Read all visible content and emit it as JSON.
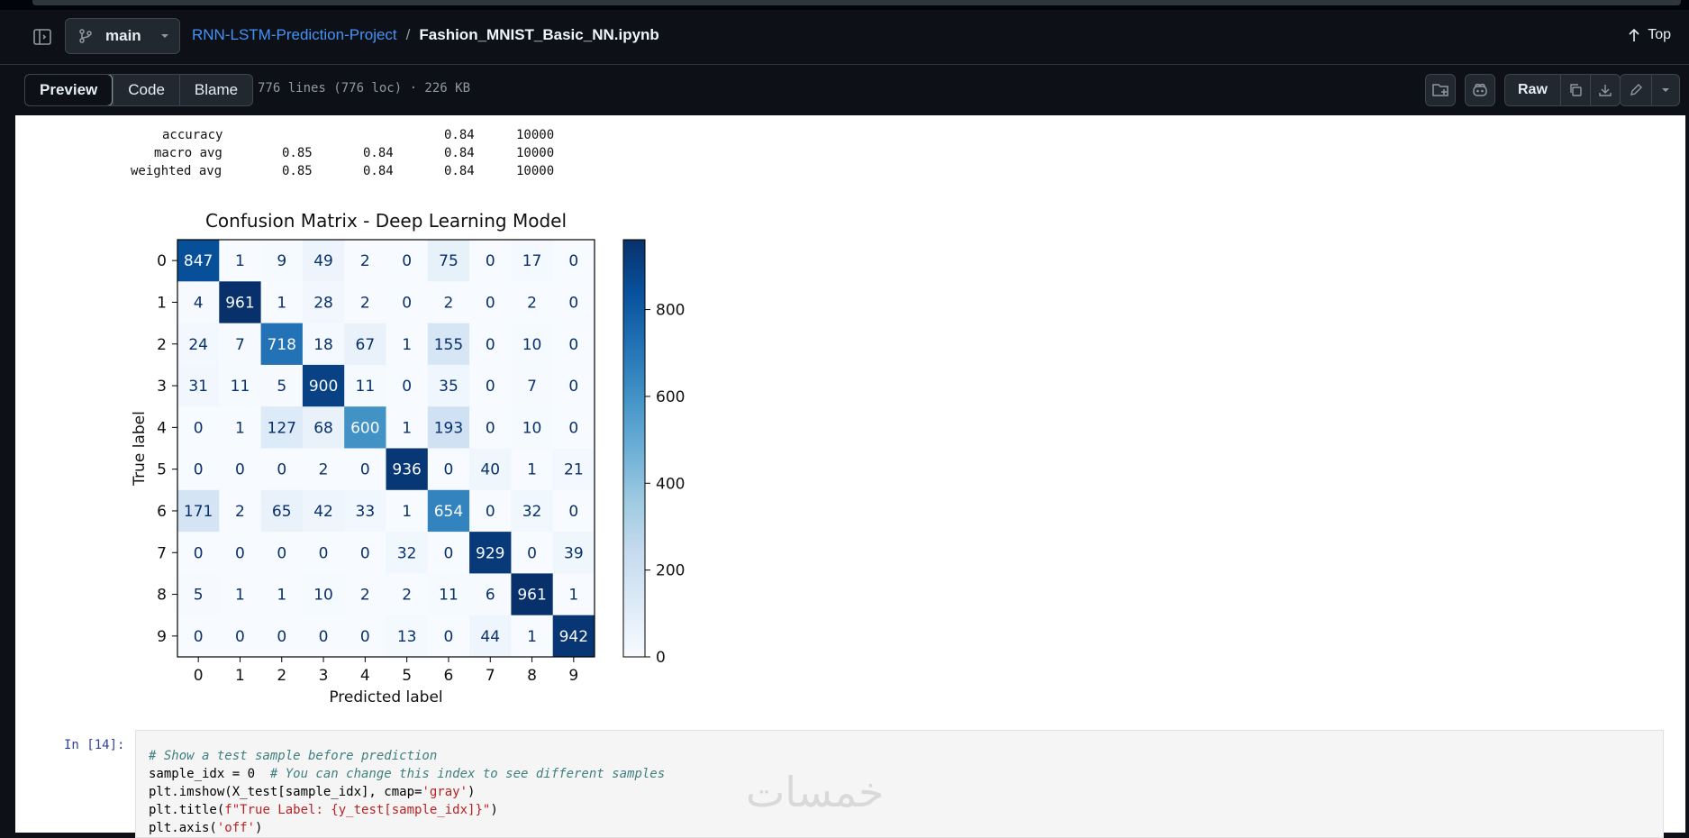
{
  "header": {
    "branch": "main",
    "repo": "RNN-LSTM-Prediction-Project",
    "separator": "/",
    "file": "Fashion_MNIST_Basic_NN.ipynb",
    "top_label": "Top"
  },
  "toolbar": {
    "tabs": [
      "Preview",
      "Code",
      "Blame"
    ],
    "file_info": "776 lines (776 loc) · 226 KB",
    "raw_label": "Raw"
  },
  "report": {
    "rows": [
      {
        "label": "accuracy",
        "precision": "",
        "recall": "",
        "f1": "0.84",
        "support": "10000"
      },
      {
        "label": "macro avg",
        "precision": "0.85",
        "recall": "0.84",
        "f1": "0.84",
        "support": "10000"
      },
      {
        "label": "weighted avg",
        "precision": "0.85",
        "recall": "0.84",
        "f1": "0.84",
        "support": "10000"
      }
    ]
  },
  "chart_data": {
    "type": "heatmap",
    "title": "Confusion Matrix - Deep Learning Model",
    "xlabel": "Predicted label",
    "ylabel": "True label",
    "x_ticks": [
      "0",
      "1",
      "2",
      "3",
      "4",
      "5",
      "6",
      "7",
      "8",
      "9"
    ],
    "y_ticks": [
      "0",
      "1",
      "2",
      "3",
      "4",
      "5",
      "6",
      "7",
      "8",
      "9"
    ],
    "matrix": [
      [
        847,
        1,
        9,
        49,
        2,
        0,
        75,
        0,
        17,
        0
      ],
      [
        4,
        961,
        1,
        28,
        2,
        0,
        2,
        0,
        2,
        0
      ],
      [
        24,
        7,
        718,
        18,
        67,
        1,
        155,
        0,
        10,
        0
      ],
      [
        31,
        11,
        5,
        900,
        11,
        0,
        35,
        0,
        7,
        0
      ],
      [
        0,
        1,
        127,
        68,
        600,
        1,
        193,
        0,
        10,
        0
      ],
      [
        0,
        0,
        0,
        2,
        0,
        936,
        0,
        40,
        1,
        21
      ],
      [
        171,
        2,
        65,
        42,
        33,
        1,
        654,
        0,
        32,
        0
      ],
      [
        0,
        0,
        0,
        0,
        0,
        32,
        0,
        929,
        0,
        39
      ],
      [
        5,
        1,
        1,
        10,
        2,
        2,
        11,
        6,
        961,
        1
      ],
      [
        0,
        0,
        0,
        0,
        0,
        13,
        0,
        44,
        1,
        942
      ]
    ],
    "colorbar_ticks": [
      0,
      200,
      400,
      600,
      800
    ],
    "color_range": [
      0,
      961
    ],
    "colormap": "Blues",
    "colors": {
      "low": "#f7fbff",
      "high": "#08306b"
    }
  },
  "cell": {
    "prompt": "In [14]:",
    "code_lines": [
      {
        "comment": "# Show a test sample before prediction"
      },
      {
        "text": "sample_idx = 0  ",
        "comment": "# You can change this index to see different samples"
      },
      {
        "text": "plt.imshow(X_test[sample_idx], cmap=",
        "str": "'gray'",
        "tail": ")"
      },
      {
        "text": "plt.title(",
        "str": "f\"True Label: {y_test[sample_idx]}\"",
        "tail": ")"
      },
      {
        "text": "plt.axis(",
        "str": "'off'",
        "tail": ")"
      }
    ]
  },
  "watermark": "خمسات"
}
